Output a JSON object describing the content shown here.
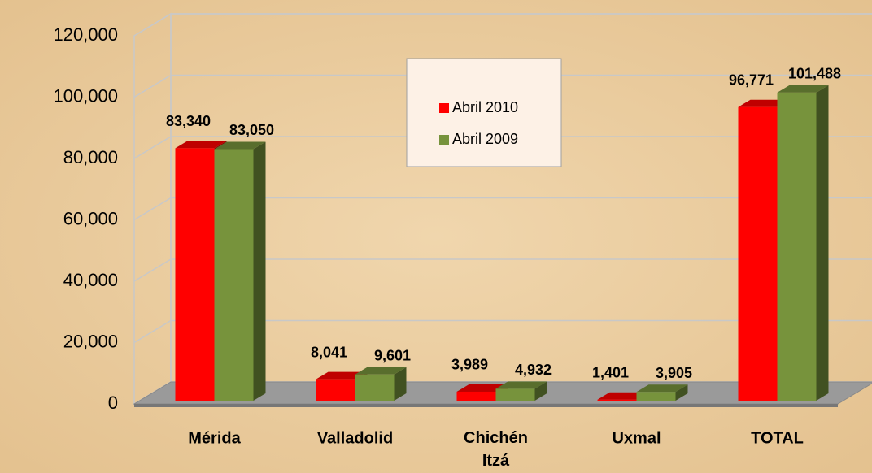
{
  "chart_data": {
    "type": "bar3d",
    "categories": [
      "Mérida",
      "Valladolid",
      "Chichén Itzá",
      "Uxmal",
      "TOTAL"
    ],
    "series": [
      {
        "name": "Abril 2010",
        "color": "#ff0000",
        "values": [
          83340,
          8041,
          3989,
          1401,
          96771
        ],
        "value_labels": [
          "83,340",
          "8,041",
          "3,989",
          "1,401",
          "96,771"
        ]
      },
      {
        "name": "Abril 2009",
        "color": "#77933c",
        "values": [
          83050,
          9601,
          4932,
          3905,
          101488
        ],
        "value_labels": [
          "83,050",
          "9,601",
          "4,932",
          "3,905",
          "101,488"
        ]
      }
    ],
    "ylim": [
      0,
      120000
    ],
    "yticks": [
      0,
      {
        "value": 20000,
        "label": "20,000"
      },
      {
        "value": 40000,
        "label": "40,000"
      },
      {
        "value": 60000,
        "label": "60,000"
      },
      {
        "value": 80000,
        "label": "80,000"
      },
      {
        "value": 100000,
        "label": "100,000"
      },
      {
        "value": 120000,
        "label": "120,000"
      }
    ],
    "grid": true,
    "legend": "upper-center"
  }
}
